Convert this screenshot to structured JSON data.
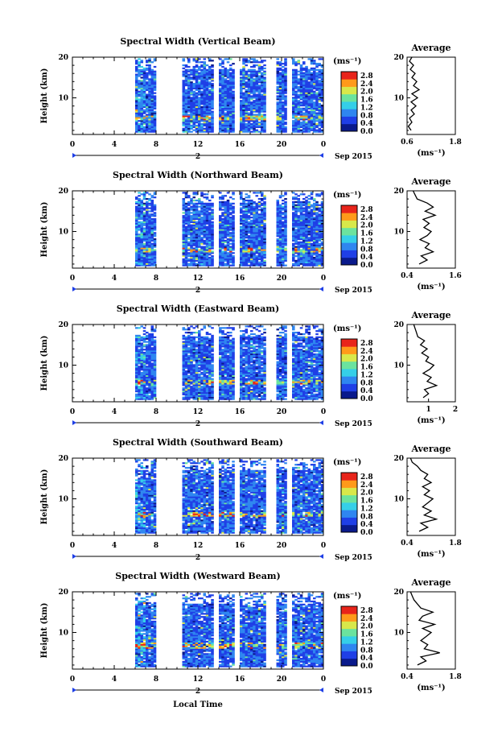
{
  "chart_data": {
    "type": "heatmap",
    "x_axis_label": "Local Time",
    "date_label": "Sep 2015",
    "day_label": "2",
    "x_ticks": [
      "0",
      "4",
      "8",
      "12",
      "16",
      "20",
      "0"
    ],
    "xlim_hours": [
      0,
      24
    ],
    "y_axis_label": "Height (km)",
    "y_ticks": [
      "10",
      "20"
    ],
    "ylim_km": [
      1,
      20
    ],
    "colorbar_unit": "(ms⁻¹)",
    "colorbar_ticks": [
      "0.0",
      "0.4",
      "0.8",
      "1.2",
      "1.6",
      "2.0",
      "2.4",
      "2.8"
    ],
    "colorbar_range": [
      0.0,
      3.0
    ],
    "colors": [
      "#0a1a8c",
      "#1f3fe6",
      "#2f86f0",
      "#35cfe8",
      "#6be39e",
      "#d8e84a",
      "#ff9a1a",
      "#e8241a"
    ],
    "data_gaps_hours": [
      [
        0,
        6
      ],
      [
        8,
        10.5
      ],
      [
        13.5,
        14
      ],
      [
        15.5,
        16
      ],
      [
        18.5,
        19.5
      ],
      [
        20.5,
        21
      ]
    ],
    "average_title": "Average",
    "average_unit": "(ms⁻¹)",
    "panels": [
      {
        "title": "Spectral Width (Vertical Beam)",
        "average_xticks": [
          "0.6",
          "1.8"
        ],
        "average_xlim": [
          0.6,
          1.8
        ],
        "average_profile": [
          [
            2,
            0.7
          ],
          [
            3,
            0.63
          ],
          [
            4,
            0.72
          ],
          [
            5,
            0.66
          ],
          [
            6,
            0.78
          ],
          [
            7,
            0.7
          ],
          [
            8,
            0.82
          ],
          [
            9,
            0.7
          ],
          [
            10,
            0.86
          ],
          [
            11,
            0.72
          ],
          [
            12,
            0.9
          ],
          [
            13,
            0.76
          ],
          [
            14,
            0.84
          ],
          [
            15,
            0.72
          ],
          [
            16,
            0.8
          ],
          [
            17,
            0.68
          ],
          [
            18,
            0.76
          ],
          [
            19,
            0.66
          ],
          [
            20,
            0.72
          ]
        ]
      },
      {
        "title": "Spectral Width (Northward Beam)",
        "average_xticks": [
          "0.4",
          "1.6"
        ],
        "average_xlim": [
          0.4,
          1.6
        ],
        "average_profile": [
          [
            2,
            0.7
          ],
          [
            3,
            0.9
          ],
          [
            4,
            0.75
          ],
          [
            5,
            1.05
          ],
          [
            6,
            0.85
          ],
          [
            7,
            0.95
          ],
          [
            8,
            0.72
          ],
          [
            9,
            0.9
          ],
          [
            10,
            1.0
          ],
          [
            11,
            0.82
          ],
          [
            12,
            0.95
          ],
          [
            13,
            0.8
          ],
          [
            14,
            1.1
          ],
          [
            15,
            0.85
          ],
          [
            16,
            1.05
          ],
          [
            17,
            0.9
          ],
          [
            18,
            0.65
          ],
          [
            19,
            0.6
          ],
          [
            20,
            0.55
          ]
        ]
      },
      {
        "title": "Spectral Width (Eastward Beam)",
        "average_xticks": [
          "1",
          "2"
        ],
        "average_xlim": [
          0.2,
          2.0
        ],
        "average_profile": [
          [
            2,
            0.8
          ],
          [
            3,
            1.0
          ],
          [
            4,
            0.85
          ],
          [
            5,
            1.3
          ],
          [
            6,
            0.95
          ],
          [
            7,
            1.1
          ],
          [
            8,
            0.8
          ],
          [
            9,
            1.05
          ],
          [
            10,
            1.2
          ],
          [
            11,
            0.9
          ],
          [
            12,
            1.0
          ],
          [
            13,
            0.75
          ],
          [
            14,
            0.95
          ],
          [
            15,
            0.7
          ],
          [
            16,
            0.85
          ],
          [
            17,
            0.6
          ],
          [
            18,
            0.55
          ],
          [
            19,
            0.5
          ],
          [
            20,
            0.45
          ]
        ]
      },
      {
        "title": "Spectral Width (Southward Beam)",
        "average_xticks": [
          "0.4",
          "1.8"
        ],
        "average_xlim": [
          0.4,
          1.8
        ],
        "average_profile": [
          [
            2,
            0.75
          ],
          [
            3,
            1.0
          ],
          [
            4,
            0.8
          ],
          [
            5,
            1.25
          ],
          [
            6,
            0.9
          ],
          [
            7,
            1.1
          ],
          [
            8,
            0.85
          ],
          [
            9,
            1.0
          ],
          [
            10,
            1.15
          ],
          [
            11,
            0.9
          ],
          [
            12,
            1.05
          ],
          [
            13,
            0.85
          ],
          [
            14,
            1.1
          ],
          [
            15,
            0.9
          ],
          [
            16,
            1.0
          ],
          [
            17,
            0.8
          ],
          [
            18,
            0.7
          ],
          [
            19,
            0.55
          ],
          [
            20,
            0.5
          ]
        ]
      },
      {
        "title": "Spectral Width (Westward Beam)",
        "average_xticks": [
          "0.4",
          "1.8"
        ],
        "average_xlim": [
          0.4,
          1.8
        ],
        "average_profile": [
          [
            2,
            0.7
          ],
          [
            3,
            0.95
          ],
          [
            4,
            0.8
          ],
          [
            5,
            1.35
          ],
          [
            6,
            0.9
          ],
          [
            7,
            1.0
          ],
          [
            8,
            0.8
          ],
          [
            9,
            0.95
          ],
          [
            10,
            1.1
          ],
          [
            11,
            0.85
          ],
          [
            12,
            1.2
          ],
          [
            13,
            0.75
          ],
          [
            14,
            0.85
          ],
          [
            15,
            1.15
          ],
          [
            16,
            0.8
          ],
          [
            17,
            0.7
          ],
          [
            18,
            0.6
          ],
          [
            19,
            0.55
          ],
          [
            20,
            0.5
          ]
        ]
      }
    ]
  }
}
